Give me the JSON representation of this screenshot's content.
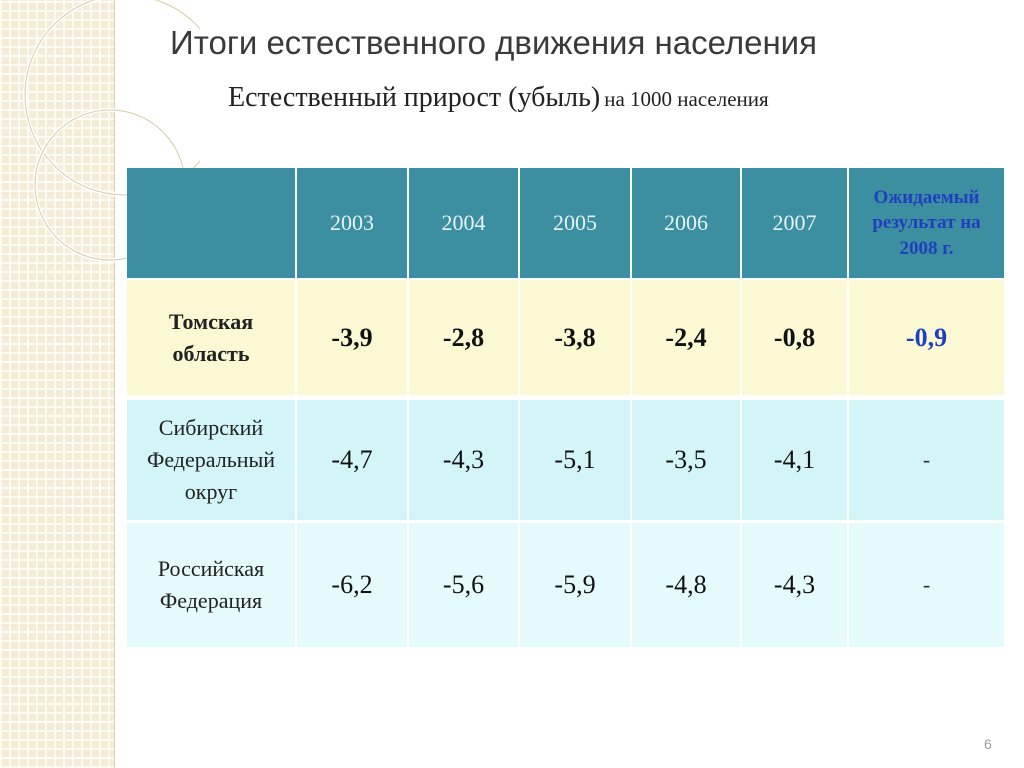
{
  "title": "Итоги естественного движения населения",
  "subtitle": {
    "main": "Естественный прирост (убыль)",
    "unit": "на 1000 населения"
  },
  "table": {
    "columns": [
      "2003",
      "2004",
      "2005",
      "2006",
      "2007",
      "Ожидаемый результат на 2008 г."
    ],
    "rows": [
      {
        "label": "Томская область",
        "values": [
          "-3,9",
          "-2,8",
          "-3,8",
          "-2,4",
          "-0,8",
          "-0,9"
        ]
      },
      {
        "label": "Сибирский Федеральный округ",
        "values": [
          "-4,7",
          "-4,3",
          "-5,1",
          "-3,5",
          "-4,1",
          "-"
        ]
      },
      {
        "label": "Российская Федерация",
        "values": [
          "-6,2",
          "-5,6",
          "-5,9",
          "-4,8",
          "-4,3",
          "-"
        ]
      }
    ]
  },
  "page_number": "6"
}
